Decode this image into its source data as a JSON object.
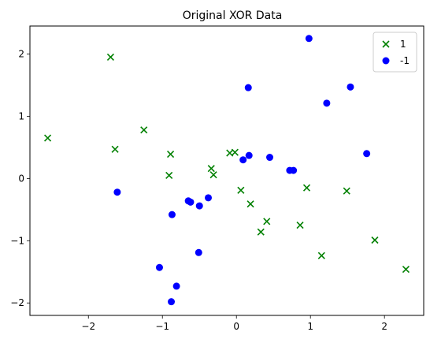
{
  "chart_data": {
    "type": "scatter",
    "title": "Original XOR Data",
    "xlabel": "",
    "ylabel": "",
    "xlim": [
      -2.79,
      2.53
    ],
    "ylim": [
      -2.2,
      2.45
    ],
    "xticks": [
      -2,
      -1,
      0,
      1,
      2
    ],
    "yticks": [
      -2,
      -1,
      0,
      1,
      2
    ],
    "grid": false,
    "legend_position": "top-right",
    "series": [
      {
        "name": "1",
        "marker": "x",
        "color": "#008000",
        "points": [
          [
            -2.55,
            0.65
          ],
          [
            -1.7,
            1.95
          ],
          [
            -1.64,
            0.47
          ],
          [
            -1.25,
            0.78
          ],
          [
            -0.89,
            0.39
          ],
          [
            -0.91,
            0.05
          ],
          [
            -0.34,
            0.16
          ],
          [
            -0.31,
            0.06
          ],
          [
            -0.09,
            0.41
          ],
          [
            -0.02,
            0.42
          ],
          [
            0.06,
            -0.19
          ],
          [
            0.19,
            -0.41
          ],
          [
            0.41,
            -0.69
          ],
          [
            0.33,
            -0.86
          ],
          [
            0.86,
            -0.75
          ],
          [
            0.95,
            -0.15
          ],
          [
            1.15,
            -1.24
          ],
          [
            1.49,
            -0.2
          ],
          [
            1.87,
            -0.99
          ],
          [
            2.29,
            -1.46
          ]
        ]
      },
      {
        "name": "-1",
        "marker": "o",
        "color": "#0000ff",
        "points": [
          [
            0.98,
            2.25
          ],
          [
            0.16,
            1.46
          ],
          [
            1.54,
            1.47
          ],
          [
            1.22,
            1.21
          ],
          [
            1.76,
            0.4
          ],
          [
            0.17,
            0.37
          ],
          [
            0.09,
            0.3
          ],
          [
            0.45,
            0.34
          ],
          [
            0.72,
            0.13
          ],
          [
            0.77,
            0.13
          ],
          [
            -1.61,
            -0.22
          ],
          [
            -0.38,
            -0.31
          ],
          [
            -0.65,
            -0.36
          ],
          [
            -0.62,
            -0.38
          ],
          [
            -0.5,
            -0.44
          ],
          [
            -0.87,
            -0.58
          ],
          [
            -0.51,
            -1.19
          ],
          [
            -1.04,
            -1.43
          ],
          [
            -0.81,
            -1.73
          ],
          [
            -0.88,
            -1.98
          ]
        ]
      }
    ]
  }
}
